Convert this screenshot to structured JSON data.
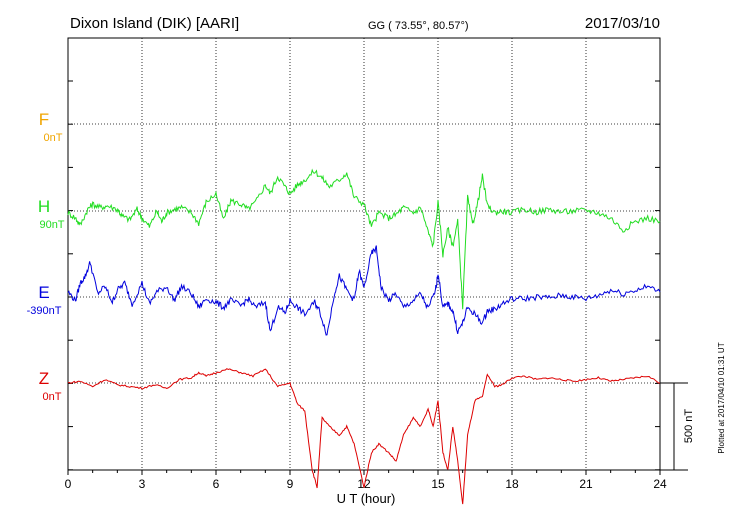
{
  "header": {
    "station": "Dixon Island (DIK)  [AARI]",
    "coords": "GG ( 73.55°,  80.57°)",
    "date": "2017/03/10"
  },
  "scale_label": "500 nT",
  "plotted_note": "Plotted at 2017/04/10 01:31  UT",
  "chart_data": {
    "type": "line",
    "xlabel": "U T (hour)",
    "xlim": [
      0,
      24
    ],
    "x_ticks": [
      0,
      3,
      6,
      9,
      12,
      15,
      18,
      21,
      24
    ],
    "grid": true,
    "series": [
      {
        "name": "F",
        "baseline": "0nT",
        "color": "#f0a500",
        "x": [],
        "y": []
      },
      {
        "name": "H",
        "baseline": "90nT",
        "color": "#22dd22",
        "x": [
          0,
          0.3,
          0.5,
          0.8,
          1.0,
          1.3,
          1.6,
          2.0,
          2.2,
          2.5,
          2.8,
          3.0,
          3.3,
          3.6,
          3.8,
          4.0,
          4.3,
          4.6,
          5.0,
          5.3,
          5.6,
          6.0,
          6.3,
          6.6,
          7.0,
          7.3,
          7.6,
          8.0,
          8.2,
          8.5,
          8.8,
          9.0,
          9.3,
          9.6,
          10.0,
          10.3,
          10.6,
          11.0,
          11.3,
          11.6,
          12.0,
          12.3,
          12.6,
          13.0,
          13.3,
          13.6,
          14.0,
          14.3,
          14.6,
          14.8,
          15.0,
          15.2,
          15.4,
          15.6,
          15.8,
          16.0,
          16.2,
          16.4,
          16.6,
          16.8,
          17.0,
          17.3,
          17.6,
          18.0,
          18.5,
          19.0,
          19.5,
          20.0,
          20.5,
          21.0,
          21.5,
          22.0,
          22.5,
          23.0,
          23.5,
          24.0
        ],
        "y": [
          -10,
          -40,
          -80,
          10,
          40,
          20,
          30,
          10,
          -30,
          -50,
          10,
          -40,
          -90,
          0,
          -60,
          -10,
          10,
          20,
          -10,
          -70,
          50,
          100,
          -50,
          60,
          40,
          10,
          50,
          150,
          100,
          200,
          140,
          100,
          150,
          180,
          230,
          190,
          140,
          180,
          220,
          80,
          40,
          -90,
          -10,
          -40,
          -20,
          20,
          -10,
          20,
          -120,
          -200,
          50,
          -250,
          -100,
          -200,
          -60,
          -550,
          80,
          -80,
          40,
          200,
          30,
          -10,
          0,
          -10,
          10,
          -5,
          10,
          -5,
          0,
          5,
          -10,
          -40,
          -110,
          -60,
          -40,
          -60
        ]
      },
      {
        "name": "E",
        "baseline": "-390nT",
        "color": "#0000dd",
        "x": [
          0,
          0.3,
          0.5,
          0.7,
          0.9,
          1.2,
          1.5,
          1.8,
          2.0,
          2.3,
          2.6,
          3.0,
          3.3,
          3.6,
          4.0,
          4.3,
          4.6,
          5.0,
          5.3,
          5.6,
          6.0,
          6.3,
          6.6,
          7.0,
          7.3,
          7.6,
          8.0,
          8.2,
          8.5,
          8.8,
          9.0,
          9.3,
          9.6,
          10.0,
          10.2,
          10.5,
          10.8,
          11.0,
          11.3,
          11.6,
          11.8,
          12.0,
          12.3,
          12.5,
          12.7,
          13.0,
          13.3,
          13.6,
          14.0,
          14.3,
          14.6,
          14.9,
          15.0,
          15.2,
          15.4,
          15.6,
          15.8,
          16.0,
          16.2,
          16.5,
          16.8,
          17.0,
          17.3,
          17.6,
          18.0,
          18.5,
          19.0,
          19.5,
          20.0,
          20.5,
          21.0,
          21.5,
          22.0,
          22.5,
          23.0,
          23.5,
          24.0
        ],
        "y": [
          30,
          -20,
          80,
          120,
          200,
          20,
          60,
          -30,
          40,
          80,
          -40,
          80,
          -40,
          30,
          60,
          -20,
          60,
          20,
          -60,
          -10,
          -30,
          -60,
          -20,
          -50,
          -10,
          -60,
          -30,
          -200,
          -60,
          -90,
          -20,
          -60,
          -100,
          -30,
          -80,
          -220,
          20,
          120,
          40,
          -20,
          150,
          50,
          250,
          280,
          50,
          -20,
          20,
          -60,
          -20,
          20,
          -70,
          40,
          140,
          -60,
          -40,
          -80,
          -200,
          -150,
          -60,
          -100,
          -150,
          -80,
          -70,
          -40,
          -10,
          -10,
          0,
          -5,
          10,
          0,
          -10,
          10,
          40,
          20,
          40,
          60,
          30
        ]
      },
      {
        "name": "Z",
        "baseline": "0nT",
        "color": "#dd0000",
        "x": [
          0,
          0.5,
          1.0,
          1.5,
          2.0,
          2.5,
          3.0,
          3.5,
          4.0,
          4.5,
          5.0,
          5.3,
          5.6,
          6.0,
          6.5,
          7.0,
          7.5,
          8.0,
          8.5,
          9.0,
          9.3,
          9.6,
          9.9,
          10.1,
          10.3,
          10.6,
          11.0,
          11.3,
          11.6,
          12.0,
          12.3,
          12.6,
          13.0,
          13.3,
          13.6,
          14.0,
          14.3,
          14.6,
          14.8,
          15.0,
          15.2,
          15.4,
          15.6,
          15.8,
          16.0,
          16.2,
          16.5,
          16.8,
          17.0,
          17.3,
          17.6,
          18.0,
          18.5,
          19.0,
          19.5,
          20.0,
          20.5,
          21.0,
          21.5,
          22.0,
          22.5,
          23.0,
          23.5,
          24.0
        ],
        "y": [
          0,
          10,
          -20,
          20,
          -10,
          -20,
          -30,
          -10,
          -30,
          20,
          30,
          60,
          40,
          60,
          80,
          60,
          40,
          80,
          -20,
          0,
          -120,
          -160,
          -500,
          -600,
          -200,
          -250,
          -300,
          -250,
          -350,
          -600,
          -400,
          -350,
          -400,
          -450,
          -300,
          -200,
          -250,
          -150,
          -250,
          -100,
          -400,
          -500,
          -250,
          -450,
          -700,
          -300,
          -100,
          -80,
          50,
          -20,
          -10,
          30,
          40,
          20,
          30,
          20,
          10,
          20,
          30,
          10,
          20,
          30,
          40,
          0
        ]
      }
    ]
  }
}
